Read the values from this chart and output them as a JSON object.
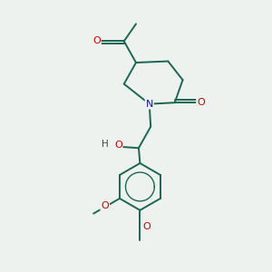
{
  "bg_color": "#eef2ee",
  "bond_color": "#1a6655",
  "atom_colors": {
    "O": "#cc0000",
    "N": "#1111bb",
    "H": "#444444",
    "C": "#1a6655"
  }
}
